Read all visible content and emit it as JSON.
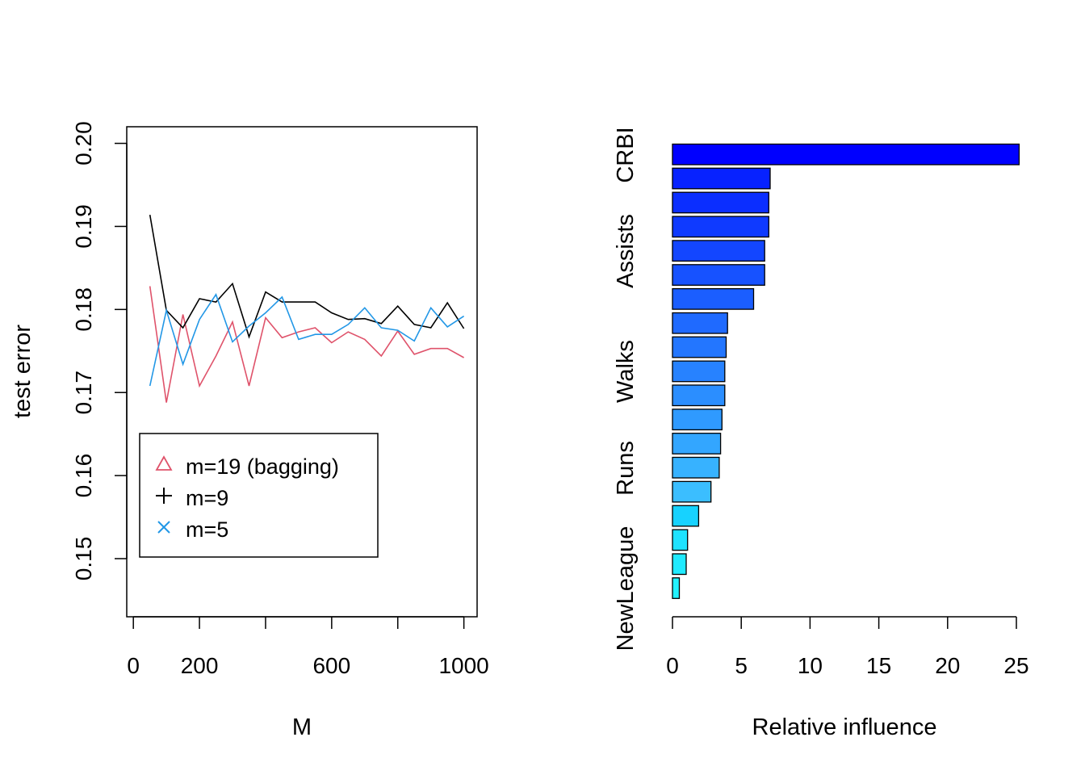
{
  "chart_data": [
    {
      "type": "line",
      "xlabel": "M",
      "ylabel": "test error",
      "xlim": [
        -20,
        1040
      ],
      "ylim": [
        0.143,
        0.202
      ],
      "x_ticks": [
        0,
        200,
        600,
        1000
      ],
      "x_tick_labels": [
        "0",
        "200",
        "600",
        "1000"
      ],
      "x_minor_ticks": [
        0,
        200,
        400,
        600,
        800,
        1000
      ],
      "y_ticks": [
        0.15,
        0.16,
        0.17,
        0.18,
        0.19,
        0.2
      ],
      "y_tick_labels": [
        "0.15",
        "0.16",
        "0.17",
        "0.18",
        "0.19",
        "0.20"
      ],
      "x": [
        50,
        100,
        150,
        200,
        250,
        300,
        350,
        400,
        450,
        500,
        550,
        600,
        650,
        700,
        750,
        800,
        850,
        900,
        950,
        1000
      ],
      "series": [
        {
          "name": "m=19 (bagging)",
          "color": "#DF536B",
          "marker": "triangle",
          "values": [
            0.1828,
            0.1688,
            0.1794,
            0.1708,
            0.1744,
            0.1785,
            0.1708,
            0.179,
            0.1766,
            0.1773,
            0.1778,
            0.176,
            0.1773,
            0.1764,
            0.1744,
            0.1774,
            0.1746,
            0.1753,
            0.1753,
            0.1742
          ]
        },
        {
          "name": "m=9",
          "color": "#000000",
          "marker": "plus",
          "values": [
            0.1914,
            0.1799,
            0.1778,
            0.1813,
            0.1809,
            0.1831,
            0.1767,
            0.1821,
            0.1809,
            0.1809,
            0.1809,
            0.1796,
            0.1788,
            0.1789,
            0.1783,
            0.1804,
            0.1782,
            0.1778,
            0.1808,
            0.1777
          ]
        },
        {
          "name": "m=5",
          "color": "#2297E6",
          "marker": "cross",
          "values": [
            0.1708,
            0.1799,
            0.1734,
            0.1788,
            0.1818,
            0.1761,
            0.178,
            0.1796,
            0.1815,
            0.1764,
            0.177,
            0.177,
            0.1782,
            0.1802,
            0.1778,
            0.1775,
            0.1762,
            0.1802,
            0.1779,
            0.1792
          ]
        }
      ],
      "legend_position": "bottom-left",
      "grid": false
    },
    {
      "type": "bar",
      "orientation": "horizontal",
      "xlabel": "Relative influence",
      "xlim": [
        0,
        25.5
      ],
      "x_ticks": [
        0,
        5,
        10,
        15,
        20,
        25
      ],
      "x_tick_labels": [
        "0",
        "5",
        "10",
        "15",
        "20",
        "25"
      ],
      "category_labels_shown": [
        "CRBI",
        "Assists",
        "Walks",
        "Runs",
        "NewLeague"
      ],
      "values": [
        25.2,
        7.1,
        7.0,
        7.0,
        6.7,
        6.7,
        5.9,
        4.0,
        3.9,
        3.8,
        3.8,
        3.6,
        3.5,
        3.4,
        2.8,
        1.9,
        1.1,
        1.0,
        0.5
      ],
      "colors": [
        "#0000FF",
        "#0722FF",
        "#0B2EFF",
        "#0F3AFF",
        "#1346FF",
        "#1752FF",
        "#1B5EFF",
        "#1F6AFF",
        "#2376FF",
        "#2782FF",
        "#2B8EFF",
        "#2F9AFF",
        "#33A6FF",
        "#37B2FF",
        "#3BBEFF",
        "#17D2FF",
        "#1EE2FF",
        "#20EAFF",
        "#22F2FF"
      ],
      "grid": false
    }
  ]
}
